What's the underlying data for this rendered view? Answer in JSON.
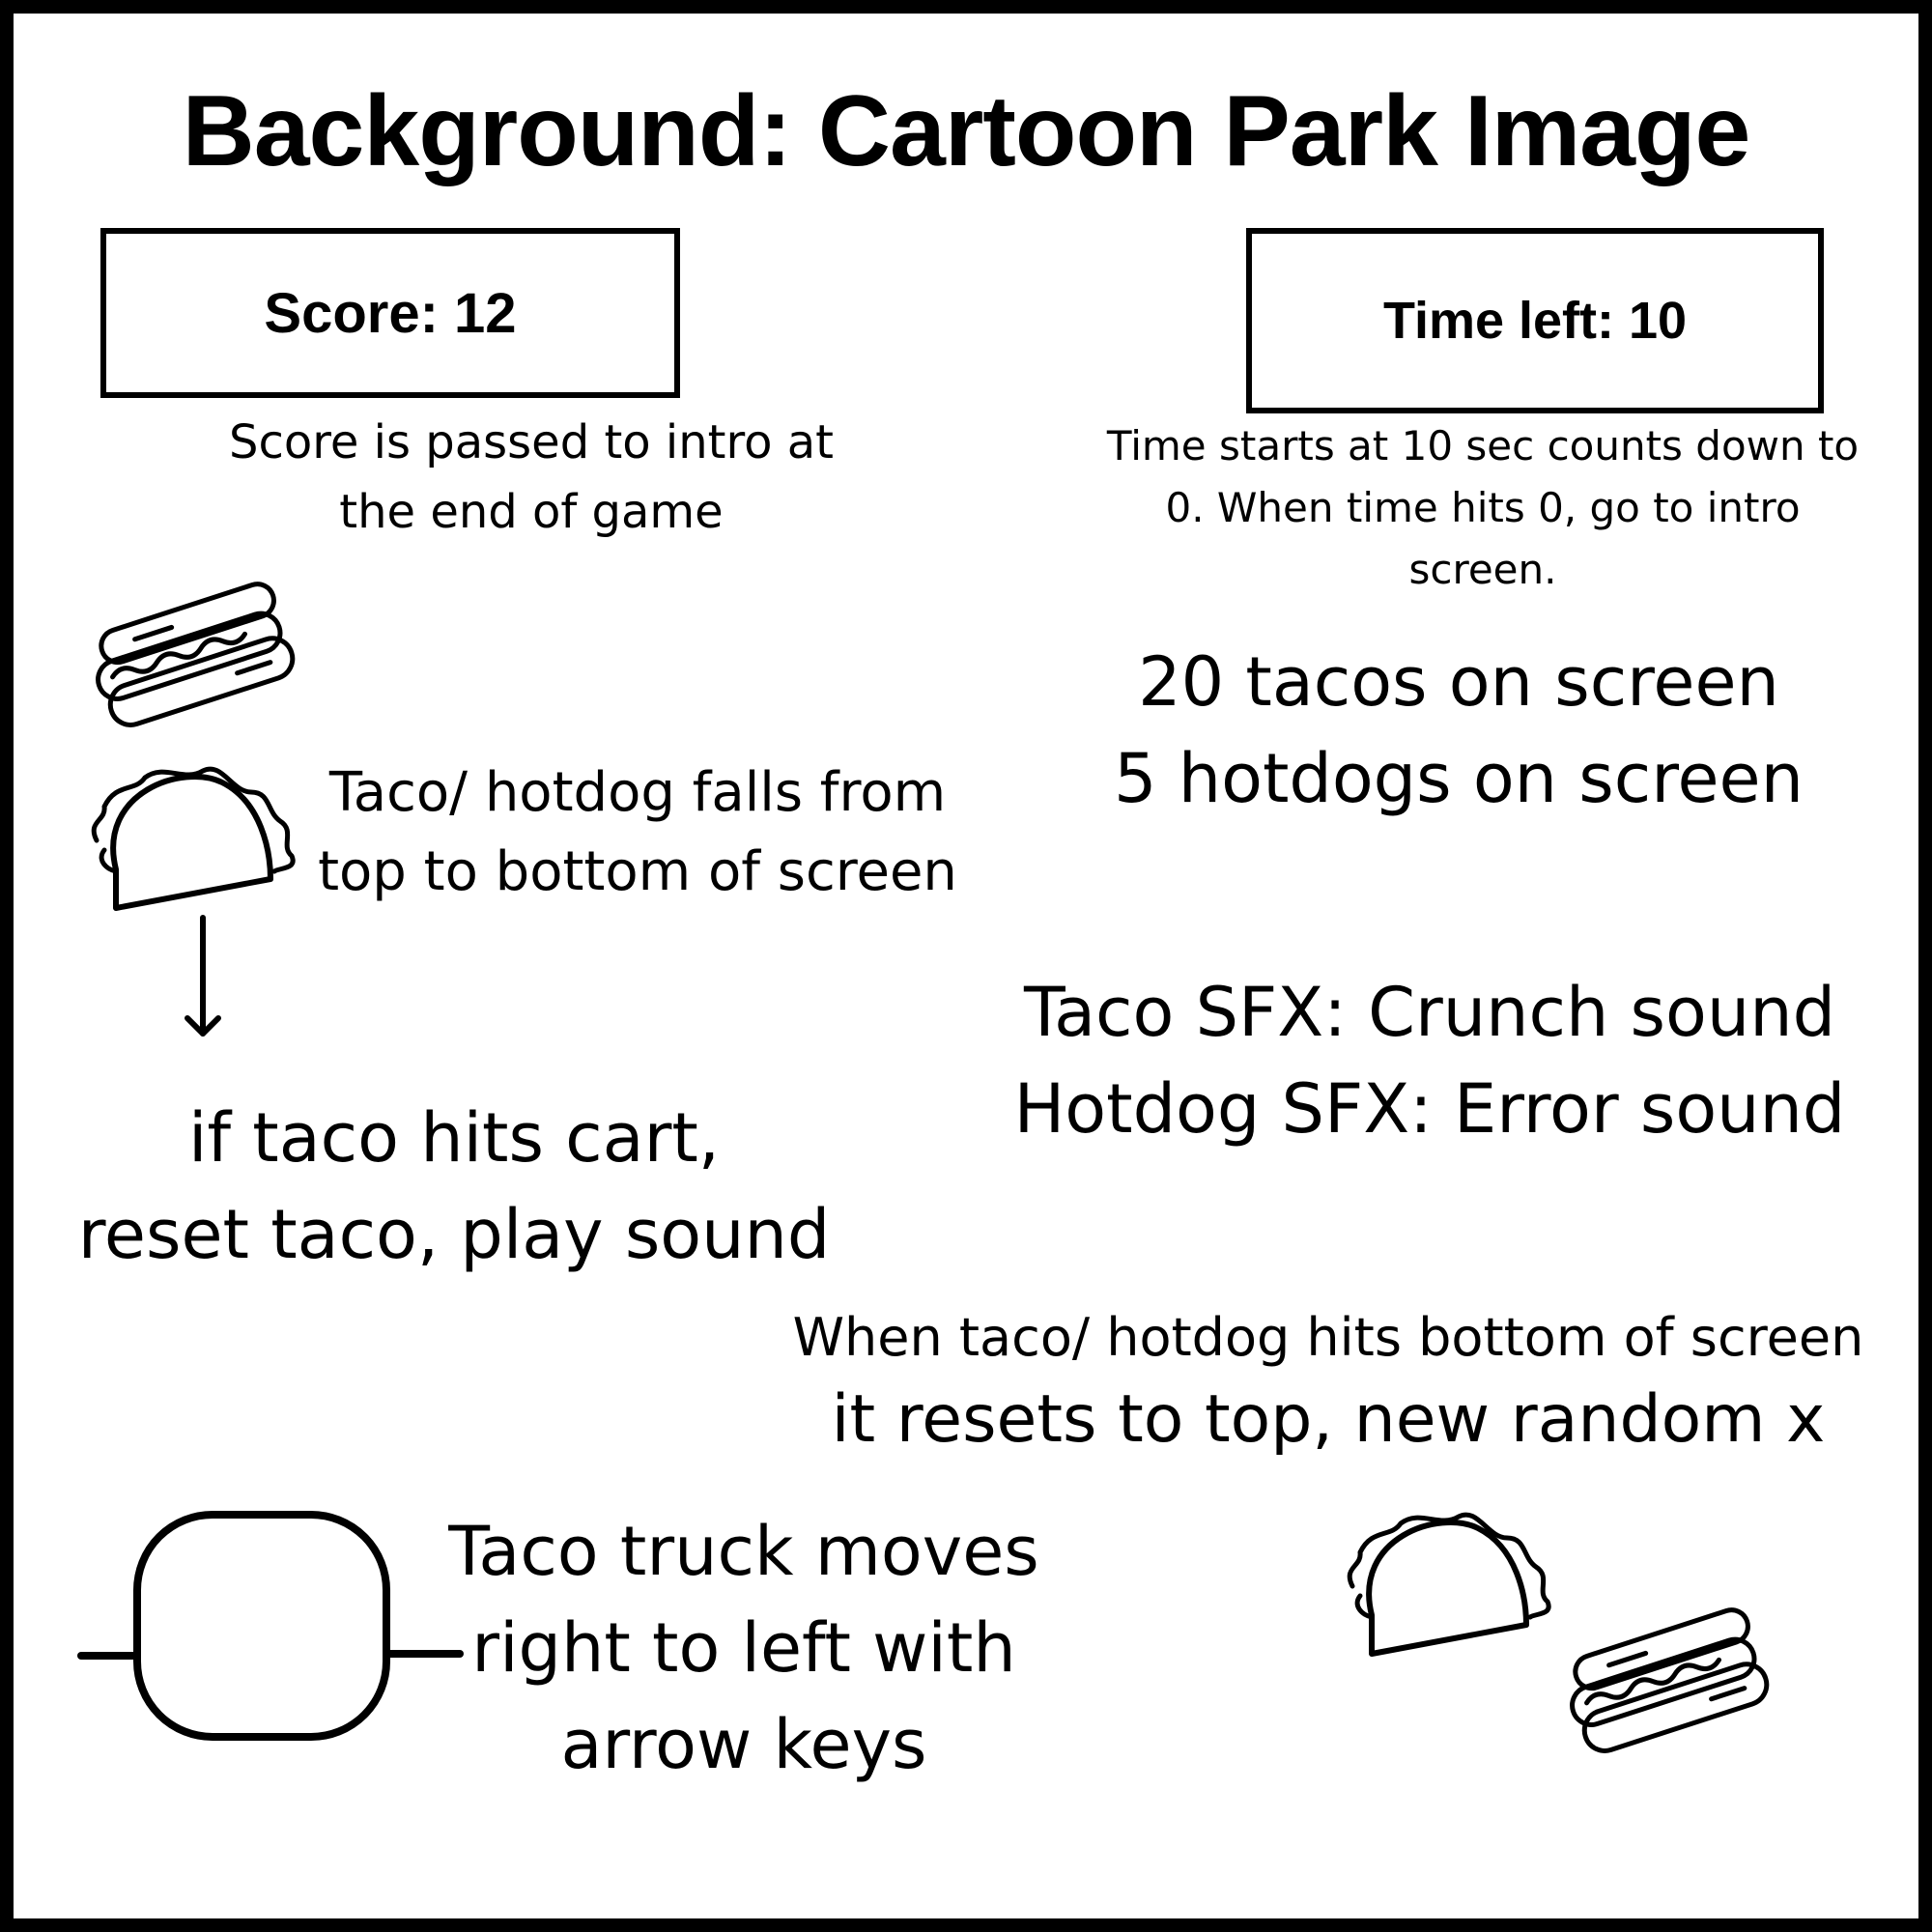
{
  "title": "Background: Cartoon Park Image",
  "score_box": {
    "label": "Score: 12"
  },
  "time_box": {
    "label": "Time left: 10"
  },
  "score_note": [
    "Score is passed to intro at",
    "the end of game"
  ],
  "time_note": [
    "Time starts at 10 sec  counts down to",
    "0. When time hits 0, go to intro",
    "screen."
  ],
  "counts_note": [
    "20 tacos on screen",
    "5 hotdogs on screen"
  ],
  "fall_note": [
    "Taco/ hotdog falls from",
    "top to bottom of screen"
  ],
  "sfx_note": [
    "Taco SFX: Crunch sound",
    "Hotdog SFX: Error sound"
  ],
  "hit_note": [
    "if taco hits cart,",
    "reset taco, play sound"
  ],
  "reset_note": [
    "When taco/ hotdog hits bottom of screen",
    "it resets to top, new random x"
  ],
  "truck_note": [
    "Taco truck moves",
    "right to left with",
    "arrow keys"
  ],
  "icons": [
    "hotdog-icon",
    "taco-icon",
    "down-arrow-icon",
    "cart-icon",
    "taco-icon",
    "hotdog-icon"
  ]
}
